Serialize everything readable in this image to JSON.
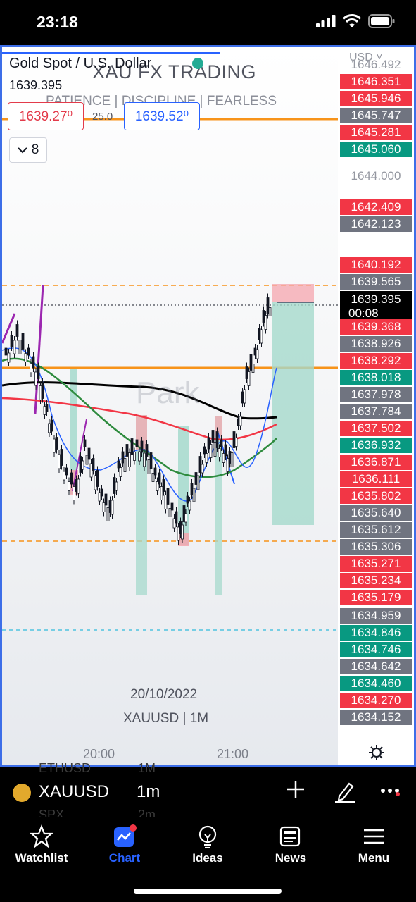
{
  "status_bar": {
    "time": "23:18"
  },
  "chart": {
    "symbol_name": "Gold Spot / U.S. Dollar",
    "last_price": "1639.395",
    "watermark_title": "XAU FX TRADING",
    "watermark_sub": "PATIENCE  |  DISCIPLINE  |  FEARLESS",
    "bid": "1639.27⁰",
    "ask": "1639.52⁰",
    "spread": "25.0",
    "collapse_count": "8",
    "park_watermark": "Park",
    "date": "20/10/2022",
    "symbol_timeframe": "XAUUSD | 1M",
    "time_labels": [
      "20:00",
      "21:00"
    ]
  },
  "price_scale": {
    "currency": "USD",
    "labels": [
      {
        "text": "1646.492",
        "kind": "plain"
      },
      {
        "text": "1646.351",
        "kind": "red"
      },
      {
        "text": "1645.946",
        "kind": "red"
      },
      {
        "text": "1645.747",
        "kind": "grey"
      },
      {
        "text": "1645.281",
        "kind": "red"
      },
      {
        "text": "1645.060",
        "kind": "green"
      },
      {
        "text": "1644.000",
        "kind": "plain"
      },
      {
        "text": "1642.409",
        "kind": "red"
      },
      {
        "text": "1642.123",
        "kind": "grey"
      },
      {
        "text": "1640.192",
        "kind": "red"
      },
      {
        "text": "1639.565",
        "kind": "grey"
      },
      {
        "text": "1639.395",
        "kind": "black",
        "sub": "00:08"
      },
      {
        "text": "1639.368",
        "kind": "red"
      },
      {
        "text": "1638.926",
        "kind": "grey"
      },
      {
        "text": "1638.292",
        "kind": "red"
      },
      {
        "text": "1638.018",
        "kind": "green"
      },
      {
        "text": "1637.978",
        "kind": "grey"
      },
      {
        "text": "1637.784",
        "kind": "grey"
      },
      {
        "text": "1637.502",
        "kind": "red"
      },
      {
        "text": "1636.932",
        "kind": "green"
      },
      {
        "text": "1636.871",
        "kind": "red"
      },
      {
        "text": "1636.111",
        "kind": "red"
      },
      {
        "text": "1635.802",
        "kind": "red"
      },
      {
        "text": "1635.640",
        "kind": "grey"
      },
      {
        "text": "1635.612",
        "kind": "grey"
      },
      {
        "text": "1635.306",
        "kind": "grey"
      },
      {
        "text": "1635.271",
        "kind": "red"
      },
      {
        "text": "1635.234",
        "kind": "red"
      },
      {
        "text": "1635.179",
        "kind": "red"
      },
      {
        "text": "1634.959",
        "kind": "grey"
      },
      {
        "text": "1634.846",
        "kind": "green"
      },
      {
        "text": "1634.746",
        "kind": "green"
      },
      {
        "text": "1634.642",
        "kind": "grey"
      },
      {
        "text": "1634.460",
        "kind": "green"
      },
      {
        "text": "1634.270",
        "kind": "red"
      },
      {
        "text": "1634.152",
        "kind": "grey"
      }
    ]
  },
  "toolbar": {
    "symbol": "XAUUSD",
    "timeframe": "1m",
    "ghost_rows": [
      {
        "symbol": "ETHUSD",
        "timeframe": "1M"
      },
      {
        "symbol": "SPX",
        "timeframe": "2m"
      }
    ]
  },
  "nav": {
    "items": [
      {
        "label": "Watchlist",
        "icon": "star-icon"
      },
      {
        "label": "Chart",
        "icon": "chart-icon",
        "active": true
      },
      {
        "label": "Ideas",
        "icon": "lightbulb-icon"
      },
      {
        "label": "News",
        "icon": "newspaper-icon"
      },
      {
        "label": "Menu",
        "icon": "hamburger-icon"
      }
    ]
  },
  "colors": {
    "accent": "#2962ff",
    "red": "#f23645",
    "green": "#089981",
    "grey": "#707480",
    "orange": "#f7931a"
  }
}
